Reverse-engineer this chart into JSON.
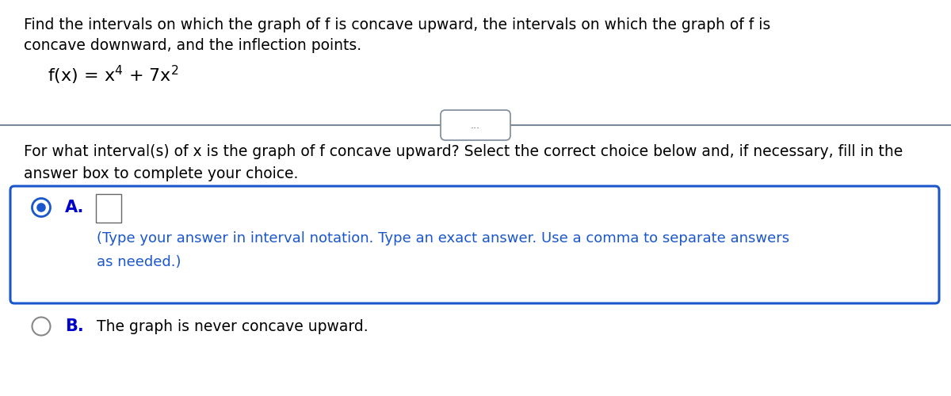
{
  "background_color": "#ffffff",
  "title_text_line1": "Find the intervals on which the graph of f is concave upward, the intervals on which the graph of f is",
  "title_text_line2": "concave downward, and the inflection points.",
  "divider_color": "#7a8a9a",
  "dots_text": "...",
  "question_line1": "For what interval(s) of x is the graph of f concave upward? Select the correct choice below and, if necessary, fill in the",
  "question_line2": "answer box to complete your choice.",
  "choice_a_label": "A.",
  "choice_a_hint_line1": "(Type your answer in interval notation. Type an exact answer. Use a comma to separate answers",
  "choice_a_hint_line2": "as needed.)",
  "choice_b_label": "B.",
  "choice_b_text": "The graph is never concave upward.",
  "box_border_color": "#1a56cc",
  "radio_selected_color": "#1a56cc",
  "radio_unselected_color": "#888888",
  "text_color": "#000000",
  "hint_color": "#1a56cc",
  "bold_blue": "#0000cc",
  "font_size_body": 13.5,
  "font_size_function": 16,
  "font_size_choice_label": 14,
  "font_size_hint": 13
}
